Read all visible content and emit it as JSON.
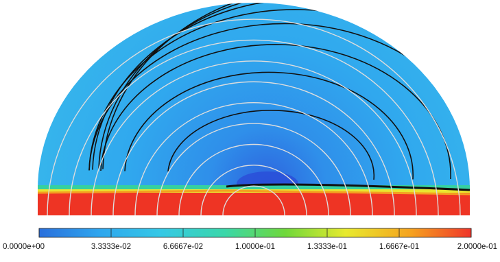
{
  "chart_data": {
    "type": "heatmap",
    "title": "",
    "xlabel": "",
    "ylabel": "",
    "colorbar": {
      "min": 0.0,
      "max": 0.2,
      "ticks": [
        0.0,
        0.033333,
        0.066667,
        0.1,
        0.13333,
        0.16667,
        0.2
      ],
      "tick_labels": [
        "0.0000e+00",
        "3.3333e-02",
        "6.6667e-02",
        "1.0000e-01",
        "1.3333e-01",
        "1.6667e-01",
        "2.0000e-01"
      ],
      "colors": [
        "#2a6fdc",
        "#2ea6ee",
        "#35c8e6",
        "#3ad7a9",
        "#6fd83a",
        "#e8ea2e",
        "#f5a21e",
        "#f0352a"
      ]
    },
    "regions": [
      {
        "name": "semicircular domain",
        "value": 0.03
      },
      {
        "name": "lower slab",
        "value": 0.2
      },
      {
        "name": "interface band",
        "value": 0.13
      }
    ],
    "contour_sets": [
      {
        "color": "#111111",
        "count": 8
      },
      {
        "color": "#dddddd",
        "count": 9
      }
    ]
  }
}
